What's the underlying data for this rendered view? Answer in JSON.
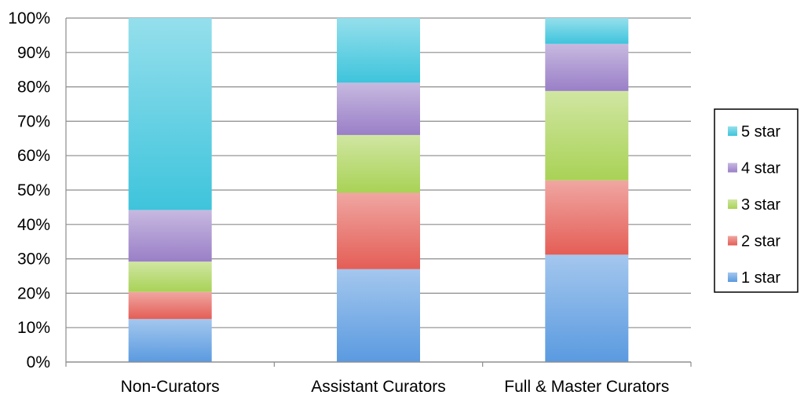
{
  "chart_data": {
    "type": "bar",
    "stacked": true,
    "normalized": true,
    "categories": [
      "Non-Curators",
      "Assistant Curators",
      "Full & Master Curators"
    ],
    "series": [
      {
        "name": "1 star",
        "values": [
          12.5,
          27,
          31.2
        ],
        "color": "#5a9ae0"
      },
      {
        "name": "2 star",
        "values": [
          7.9,
          22.2,
          21.6
        ],
        "color": "#e45e56"
      },
      {
        "name": "3 star",
        "values": [
          8.8,
          16.8,
          26
        ],
        "color": "#a9d256"
      },
      {
        "name": "4 star",
        "values": [
          15,
          15.2,
          13.7
        ],
        "color": "#9a7fc7"
      },
      {
        "name": "5 star",
        "values": [
          55.8,
          18.8,
          7.5
        ],
        "color": "#3ec4dc"
      }
    ],
    "y_ticks": [
      "0%",
      "10%",
      "20%",
      "30%",
      "40%",
      "50%",
      "60%",
      "70%",
      "80%",
      "90%",
      "100%"
    ],
    "ylim": [
      0,
      100
    ],
    "grid": true,
    "legend_position": "right",
    "legend_order": [
      "5 star",
      "4 star",
      "3 star",
      "2 star",
      "1 star"
    ],
    "title": "",
    "xlabel": "",
    "ylabel": ""
  }
}
